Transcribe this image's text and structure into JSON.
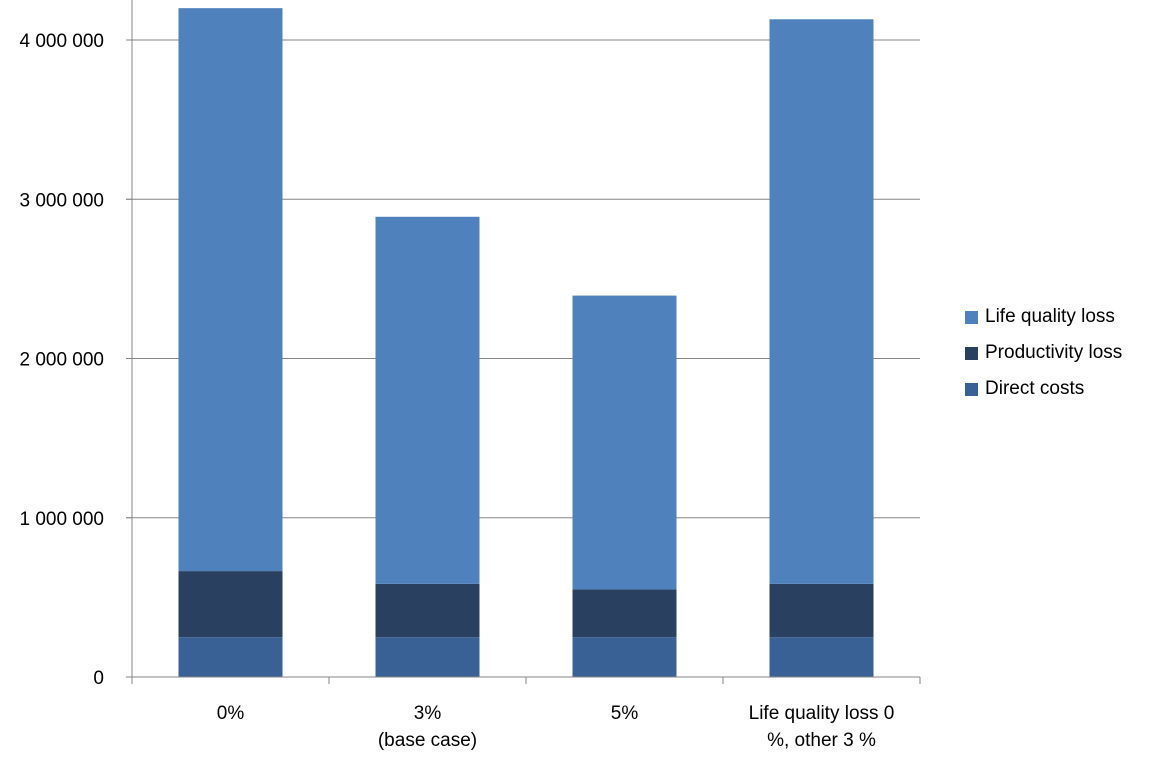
{
  "chart_data": {
    "type": "bar",
    "stacked": true,
    "categories": [
      [
        "0%"
      ],
      [
        "3%",
        "(base case)"
      ],
      [
        "5%"
      ],
      [
        "Life quality loss 0",
        "%, other 3 %"
      ]
    ],
    "series": [
      {
        "name": "Direct costs",
        "color": "#3A6196",
        "values": [
          250000,
          250000,
          250000,
          250000
        ]
      },
      {
        "name": "Productivity loss",
        "color": "#2A4060",
        "values": [
          415000,
          335000,
          300000,
          335000
        ]
      },
      {
        "name": "Life quality loss",
        "color": "#4F81BD",
        "values": [
          3535000,
          2305000,
          1845000,
          3545000
        ]
      }
    ],
    "yticks": [
      {
        "value": 0,
        "label": "0"
      },
      {
        "value": 1000000,
        "label": "1 000 000"
      },
      {
        "value": 2000000,
        "label": "2 000 000"
      },
      {
        "value": 3000000,
        "label": "3 000 000"
      },
      {
        "value": 4000000,
        "label": "4 000 000"
      }
    ],
    "ylim": [
      0,
      4000000
    ],
    "grid": true,
    "legend_position": "right",
    "title": "",
    "xlabel": "",
    "ylabel": ""
  }
}
